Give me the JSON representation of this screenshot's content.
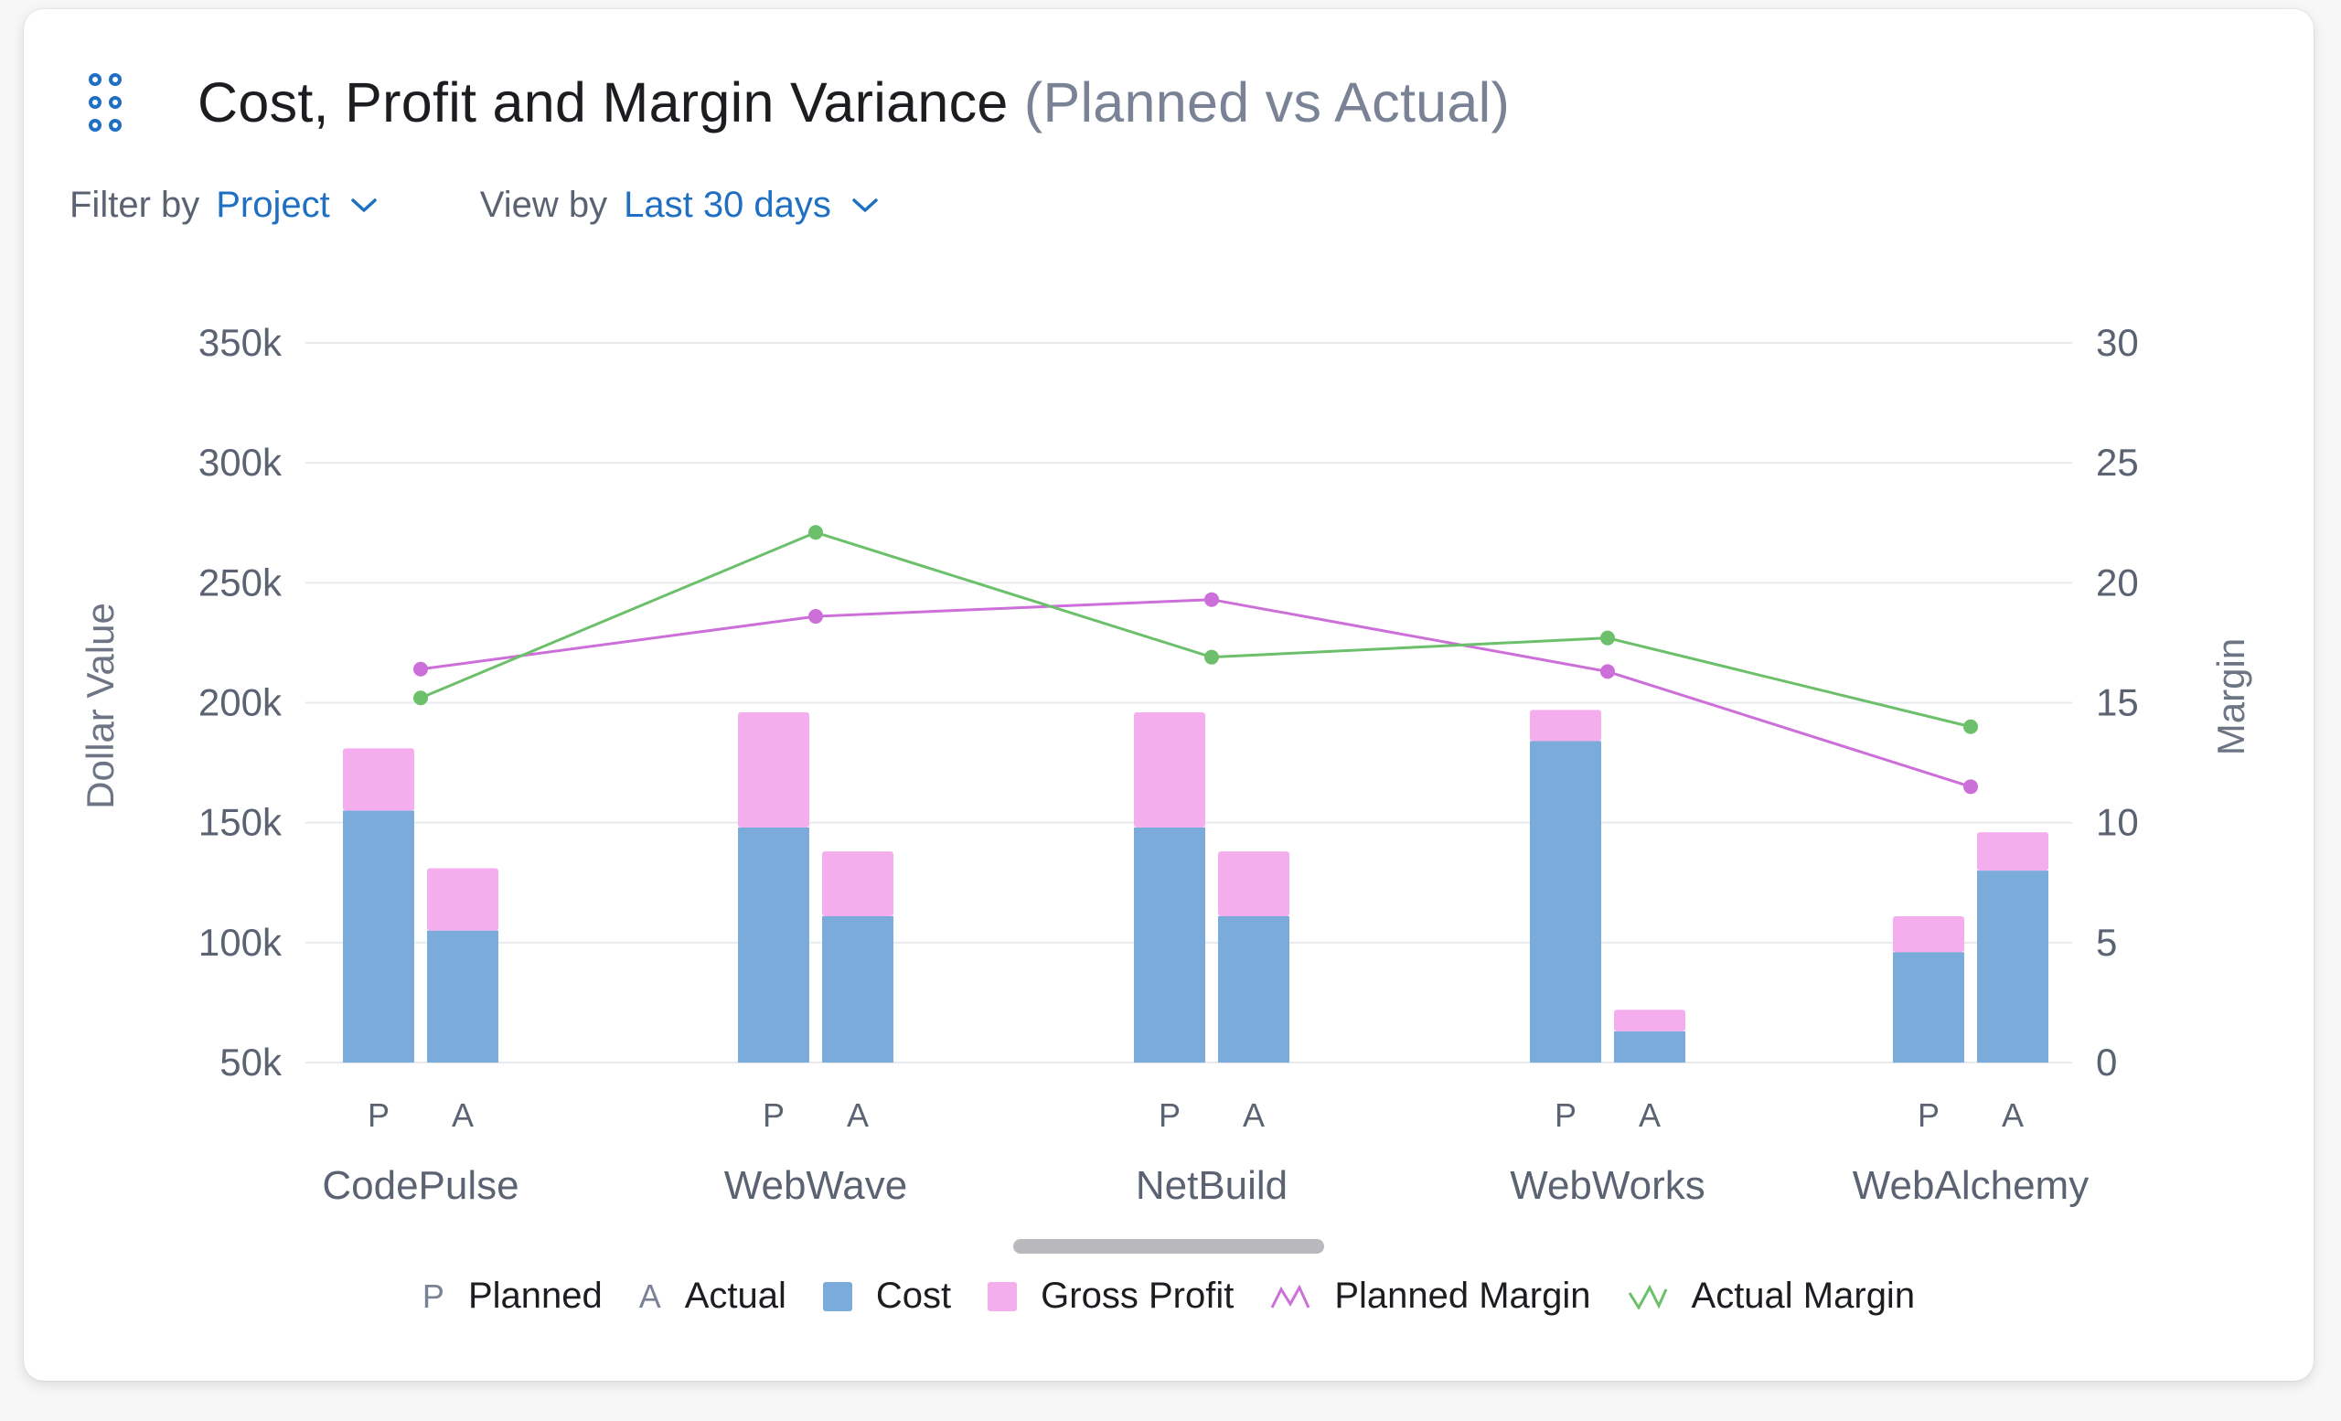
{
  "header": {
    "title": "Cost, Profit and Margin Variance",
    "subtitle": "(Planned vs Actual)",
    "menu_icon": "drag-handle-icon"
  },
  "filters": [
    {
      "label": "Filter by",
      "value": "Project",
      "icon": "chevron-down-icon"
    },
    {
      "label": "View by",
      "value": "Last 30 days",
      "icon": "chevron-down-icon"
    }
  ],
  "colors": {
    "cost": "#7aabdb",
    "gross_profit": "#f5aeed",
    "planned_margin": "#cc6fd8",
    "actual_margin": "#6cc06b",
    "axis_text": "#5b6373",
    "grid": "#e8eaee"
  },
  "chart_data": {
    "type": "bar",
    "stacked": true,
    "categories": [
      "CodePulse",
      "WebWave",
      "NetBuild",
      "WebWorks",
      "WebAlchemy"
    ],
    "sub_categories": [
      "P",
      "A"
    ],
    "series": [
      {
        "name": "Cost",
        "kind": "bar",
        "axis": "left",
        "planned": [
          155000,
          148000,
          148000,
          184000,
          96000
        ],
        "actual": [
          105000,
          111000,
          111000,
          63000,
          130000
        ]
      },
      {
        "name": "Gross Profit",
        "kind": "bar",
        "axis": "left",
        "planned": [
          26000,
          48000,
          48000,
          13000,
          15000
        ],
        "actual": [
          26000,
          27000,
          27000,
          9000,
          16000
        ]
      },
      {
        "name": "Planned Margin",
        "kind": "line",
        "axis": "right",
        "values": [
          16.4,
          18.6,
          19.3,
          16.3,
          11.5
        ]
      },
      {
        "name": "Actual Margin",
        "kind": "line",
        "axis": "right",
        "values": [
          15.2,
          22.1,
          16.9,
          17.7,
          14.0
        ]
      }
    ],
    "ylabel": "Dollar Value",
    "y2label": "Margin",
    "ylim": [
      50000,
      350000
    ],
    "y2lim": [
      0,
      30
    ],
    "yticks": [
      "50k",
      "100k",
      "150k",
      "200k",
      "250k",
      "300k",
      "350k"
    ],
    "y2ticks": [
      "0",
      "5",
      "10",
      "15",
      "20",
      "25",
      "30"
    ],
    "grid": true,
    "legend_position": "bottom"
  },
  "legend": [
    {
      "symbol": "P",
      "label": "Planned"
    },
    {
      "symbol": "A",
      "label": "Actual"
    },
    {
      "symbol": "swatch-cost",
      "label": "Cost"
    },
    {
      "symbol": "swatch-profit",
      "label": "Gross Profit"
    },
    {
      "symbol": "line-planned",
      "label": "Planned Margin"
    },
    {
      "symbol": "line-actual",
      "label": "Actual Margin"
    }
  ]
}
